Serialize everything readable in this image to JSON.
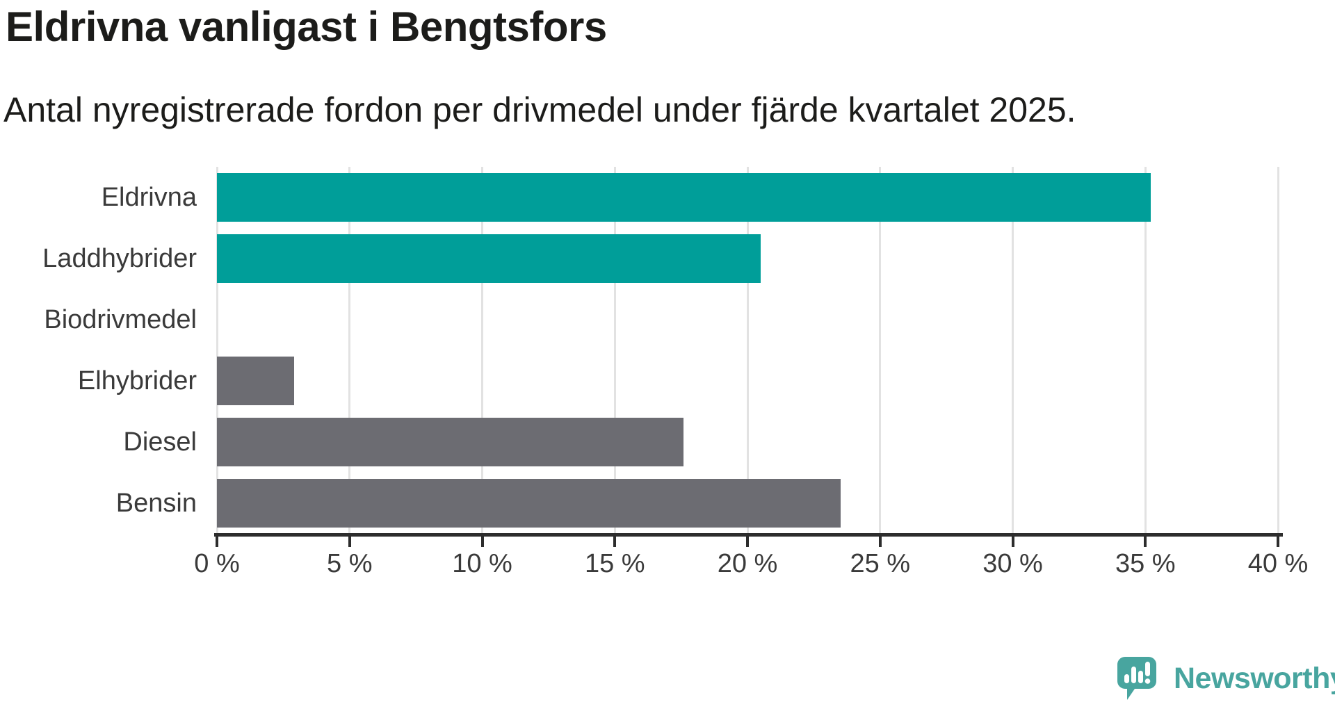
{
  "header": {
    "title": "Eldrivna vanligast i Bengtsfors",
    "subtitle": "Antal nyregistrerade fordon per drivmedel under fjärde kvartalet 2025."
  },
  "chart_data": {
    "type": "bar",
    "orientation": "horizontal",
    "title": "Eldrivna vanligast i Bengtsfors",
    "subtitle": "Antal nyregistrerade fordon per drivmedel under fjärde kvartalet 2025.",
    "categories": [
      "Eldrivna",
      "Laddhybrider",
      "Biodrivmedel",
      "Elhybrider",
      "Diesel",
      "Bensin"
    ],
    "values": [
      35.2,
      20.5,
      0,
      2.9,
      17.6,
      23.5
    ],
    "unit": "%",
    "xlim": [
      0,
      40
    ],
    "x_tick_values": [
      0,
      5,
      10,
      15,
      20,
      25,
      30,
      35,
      40
    ],
    "x_tick_labels": [
      "0 %",
      "5 %",
      "10 %",
      "15 %",
      "20 %",
      "25 %",
      "30 %",
      "35 %",
      "40 %"
    ],
    "grid": true,
    "legend": false,
    "bar_colors": [
      "#009E99",
      "#009E99",
      "#6C6C72",
      "#6C6C72",
      "#6C6C72",
      "#6C6C72"
    ]
  },
  "colors": {
    "accent_teal": "#009E99",
    "neutral_gray": "#6C6C72",
    "logo_teal": "#48A59F",
    "gridline": "#E2E2E2",
    "axis": "#2D2D2D",
    "text_dark": "#1C1C1A",
    "text_label": "#3A3A3A"
  },
  "footer": {
    "brand": "Newsworthy"
  }
}
